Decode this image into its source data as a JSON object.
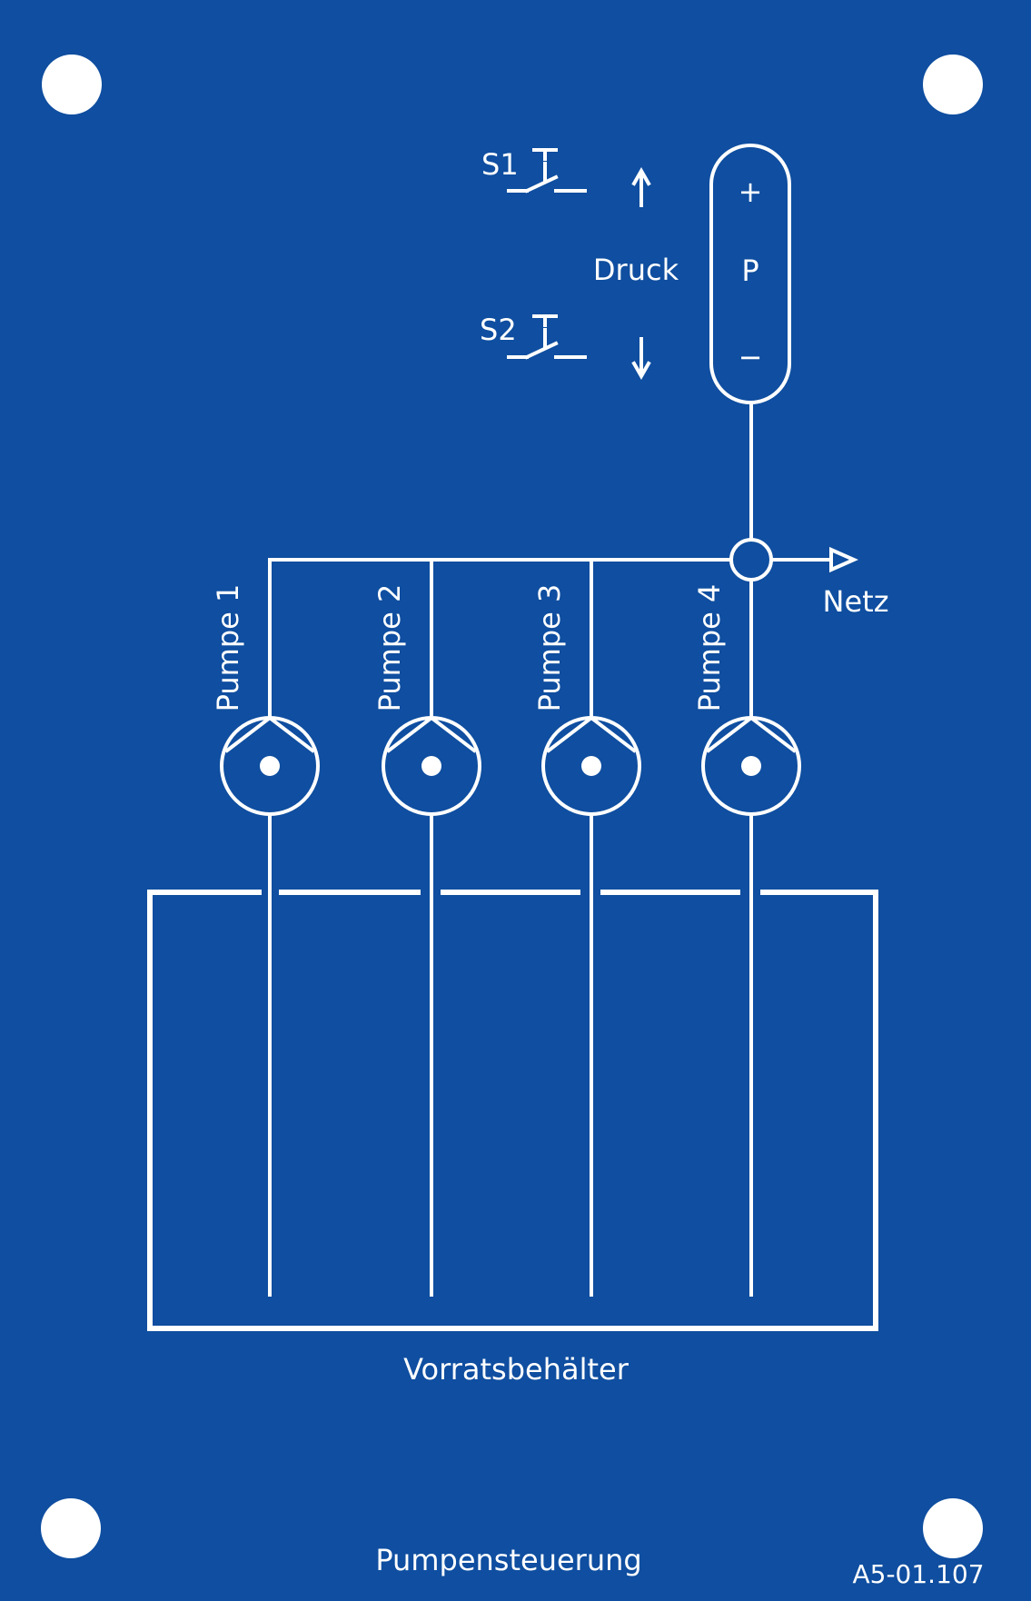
{
  "panel": {
    "background": "#0f4ea0",
    "line_color": "#ffffff",
    "title": "Pumpensteuerung",
    "code": "A5-01.107"
  },
  "switches": [
    {
      "label": "S1",
      "arrow": "↑"
    },
    {
      "label": "S2",
      "arrow": "↓"
    }
  ],
  "pressure": {
    "label": "Druck",
    "gauge_symbol": "P",
    "plus": "+",
    "minus": "−"
  },
  "network": {
    "label": "Netz"
  },
  "pumps": [
    {
      "label": "Pumpe 1"
    },
    {
      "label": "Pumpe 2"
    },
    {
      "label": "Pumpe 3"
    },
    {
      "label": "Pumpe 4"
    }
  ],
  "tank": {
    "label": "Vorratsbehälter"
  },
  "icons": [
    "mounting-hole-icon",
    "push-switch-icon",
    "pump-icon",
    "junction-icon",
    "flow-arrow-icon"
  ]
}
